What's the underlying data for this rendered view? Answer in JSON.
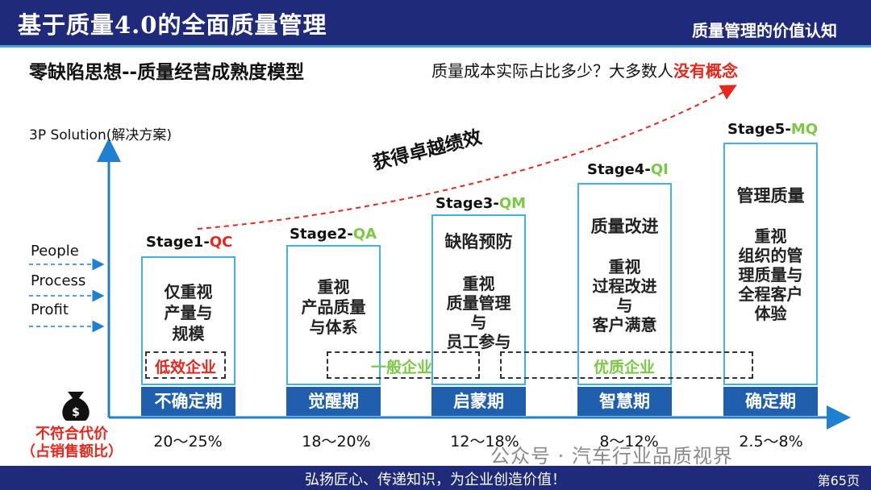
{
  "header": {
    "title": "基于质量4.0的全面质量管理",
    "right_title": "质量管理的价值认知"
  },
  "subtitle": "零缺陷思想--质量经营成熟度模型",
  "question": {
    "text": "质量成本实际占比多少？大多数人",
    "highlight": "没有概念"
  },
  "y_axis_label": "3P Solution(解决方案)",
  "ppp": [
    "People",
    "Process",
    "Profit"
  ],
  "arrow_label": "获得卓越绩效",
  "stages": [
    {
      "prefix": "Stage1-",
      "code": "QC",
      "code_color": "red",
      "lines": [
        "仅重视",
        "产量与",
        "规模"
      ],
      "phase": "不确定期",
      "cost": "20～25%"
    },
    {
      "prefix": "Stage2-",
      "code": "QA",
      "code_color": "green",
      "lines": [
        "重视",
        "产品质量",
        "与体系"
      ],
      "phase": "觉醒期",
      "cost": "18～20%"
    },
    {
      "prefix": "Stage3-",
      "code": "QM",
      "code_color": "green",
      "title": "缺陷预防",
      "lines": [
        "重视",
        "质量管理",
        "与",
        "员工参与"
      ],
      "phase": "启蒙期",
      "cost": "12～18%"
    },
    {
      "prefix": "Stage4-",
      "code": "QI",
      "code_color": "green",
      "title": "质量改进",
      "lines": [
        "重视",
        "过程改进",
        "与",
        "客户满意"
      ],
      "phase": "智慧期",
      "cost": "8～12%"
    },
    {
      "prefix": "Stage5-",
      "code": "MQ",
      "code_color": "green",
      "title": "管理质量",
      "lines": [
        "重视",
        "组织的管",
        "理质量与",
        "全程客户",
        "体验"
      ],
      "phase": "确定期",
      "cost": "2.5～8%"
    }
  ],
  "enterprise_groups": [
    {
      "label": "低效企业",
      "color": "#e8261b"
    },
    {
      "label": "一般企业",
      "color": "#7ac943"
    },
    {
      "label": "优质企业",
      "color": "#7ac943"
    }
  ],
  "cost_label": [
    "不符合代价",
    "（占销售额比）"
  ],
  "money_icon": "money-bag-icon",
  "watermark": "公众号 · 汽车行业品质视界",
  "footer": {
    "text": "弘扬匠心、传递知识，为企业创造价值！",
    "page": "第65页"
  },
  "colors": {
    "navy": "#1f2a7a",
    "phase_blue": "#1f5fae",
    "box_border": "#3fb3e8",
    "red": "#e8261b",
    "green": "#7ac943"
  }
}
